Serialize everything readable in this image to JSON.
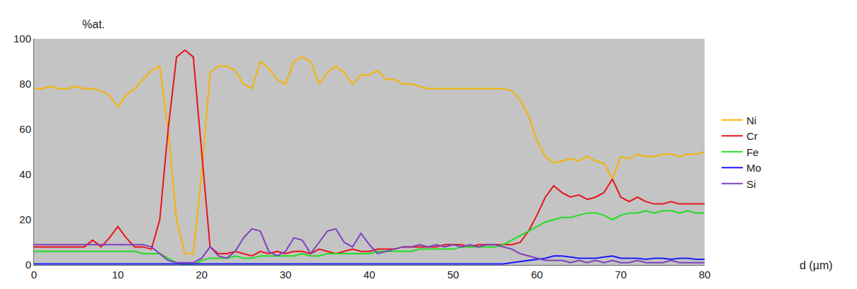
{
  "chart_data": {
    "type": "line",
    "x_label": "d (µm)",
    "y_label": "%at.",
    "x": [
      0,
      1,
      2,
      3,
      4,
      5,
      6,
      7,
      8,
      9,
      10,
      11,
      12,
      13,
      14,
      15,
      16,
      17,
      18,
      19,
      20,
      21,
      22,
      23,
      24,
      25,
      26,
      27,
      28,
      29,
      30,
      31,
      32,
      33,
      34,
      35,
      36,
      37,
      38,
      39,
      40,
      41,
      42,
      43,
      44,
      45,
      46,
      47,
      48,
      49,
      50,
      51,
      52,
      53,
      54,
      55,
      56,
      57,
      58,
      59,
      60,
      61,
      62,
      63,
      64,
      65,
      66,
      67,
      68,
      69,
      70,
      71,
      72,
      73,
      74,
      75,
      76,
      77,
      78,
      79,
      80
    ],
    "series": [
      {
        "name": "Ni",
        "color": "#f5b400",
        "values": [
          78,
          78,
          79,
          78,
          78,
          79,
          78,
          78,
          77,
          75,
          70,
          75,
          78,
          82,
          86,
          88,
          60,
          20,
          5,
          5,
          40,
          85,
          88,
          88,
          86,
          80,
          78,
          90,
          87,
          82,
          80,
          90,
          92,
          90,
          80,
          85,
          88,
          85,
          80,
          84,
          84,
          86,
          82,
          82,
          80,
          80,
          79,
          78,
          78,
          78,
          78,
          78,
          78,
          78,
          78,
          78,
          78,
          77,
          73,
          66,
          55,
          48,
          45,
          46,
          47,
          46,
          48,
          46,
          45,
          38,
          48,
          47,
          49,
          48,
          48,
          49,
          49,
          48,
          49,
          49,
          50
        ]
      },
      {
        "name": "Cr",
        "color": "#e8141c",
        "values": [
          8,
          8,
          8,
          8,
          8,
          8,
          8,
          11,
          8,
          12,
          17,
          12,
          8,
          8,
          7,
          20,
          60,
          92,
          95,
          92,
          50,
          8,
          5,
          5,
          6,
          5,
          4,
          6,
          5,
          6,
          5,
          6,
          6,
          5,
          7,
          6,
          5,
          6,
          7,
          6,
          6,
          7,
          7,
          7,
          8,
          8,
          8,
          8,
          8,
          9,
          9,
          9,
          8,
          9,
          9,
          9,
          9,
          9,
          10,
          15,
          22,
          30,
          35,
          32,
          30,
          31,
          29,
          30,
          32,
          38,
          30,
          28,
          30,
          28,
          27,
          27,
          28,
          27,
          27,
          27,
          27
        ]
      },
      {
        "name": "Fe",
        "color": "#22dd22",
        "values": [
          6,
          6,
          6,
          6,
          6,
          6,
          6,
          6,
          6,
          6,
          6,
          6,
          6,
          5,
          5,
          5,
          3,
          1,
          0,
          0,
          2,
          3,
          3,
          3,
          4,
          3,
          3,
          4,
          4,
          4,
          4,
          4,
          5,
          4,
          4,
          5,
          5,
          5,
          5,
          5,
          5,
          6,
          6,
          6,
          6,
          6,
          7,
          7,
          7,
          7,
          7,
          8,
          8,
          8,
          8,
          8,
          9,
          11,
          13,
          15,
          17,
          19,
          20,
          21,
          21,
          22,
          23,
          23,
          22,
          20,
          22,
          23,
          23,
          24,
          23,
          24,
          24,
          23,
          24,
          23,
          23
        ]
      },
      {
        "name": "Mo",
        "color": "#1a1aff",
        "values": [
          0.5,
          0.5,
          0.5,
          0.5,
          0.5,
          0.5,
          0.5,
          0.5,
          0.5,
          0.5,
          0.5,
          0.5,
          0.5,
          0.5,
          0.5,
          0.5,
          0.5,
          0.5,
          0.5,
          0.5,
          0.5,
          0.5,
          0.5,
          0.5,
          0.5,
          0.5,
          0.5,
          0.5,
          0.5,
          0.5,
          0.5,
          0.5,
          0.5,
          0.5,
          0.5,
          0.5,
          0.5,
          0.5,
          0.5,
          0.5,
          0.5,
          0.5,
          0.5,
          0.5,
          0.5,
          0.5,
          0.5,
          0.5,
          0.5,
          0.5,
          0.5,
          0.5,
          0.5,
          0.5,
          0.5,
          0.5,
          0.5,
          1,
          1.5,
          2,
          2.5,
          3,
          4,
          4,
          3.5,
          3,
          3,
          3,
          3.5,
          4,
          3,
          3,
          3,
          2.5,
          3,
          3,
          2.5,
          3,
          3,
          2.5,
          2.5
        ]
      },
      {
        "name": "Si",
        "color": "#7f3fbf",
        "values": [
          9,
          9,
          9,
          9,
          9,
          9,
          9,
          9,
          9,
          9,
          9,
          9,
          9,
          9,
          8,
          5,
          2,
          1,
          1,
          1,
          3,
          8,
          4,
          3,
          6,
          12,
          16,
          15,
          6,
          4,
          6,
          12,
          11,
          5,
          10,
          15,
          16,
          10,
          8,
          14,
          9,
          5,
          6,
          7,
          8,
          8,
          9,
          8,
          9,
          8,
          9,
          8,
          9,
          8,
          9,
          9,
          8,
          7,
          5,
          4,
          3,
          2,
          2,
          2,
          1,
          2,
          1,
          2,
          1,
          2,
          1,
          1,
          2,
          1,
          1,
          1,
          2,
          1,
          1,
          1,
          1
        ]
      }
    ],
    "xlim": [
      0,
      80
    ],
    "ylim": [
      0,
      100
    ],
    "xticks": [
      0,
      10,
      20,
      30,
      40,
      50,
      60,
      70,
      80
    ],
    "yticks": [
      0,
      20,
      40,
      60,
      80,
      100
    ],
    "grid": false,
    "legend": "right"
  }
}
